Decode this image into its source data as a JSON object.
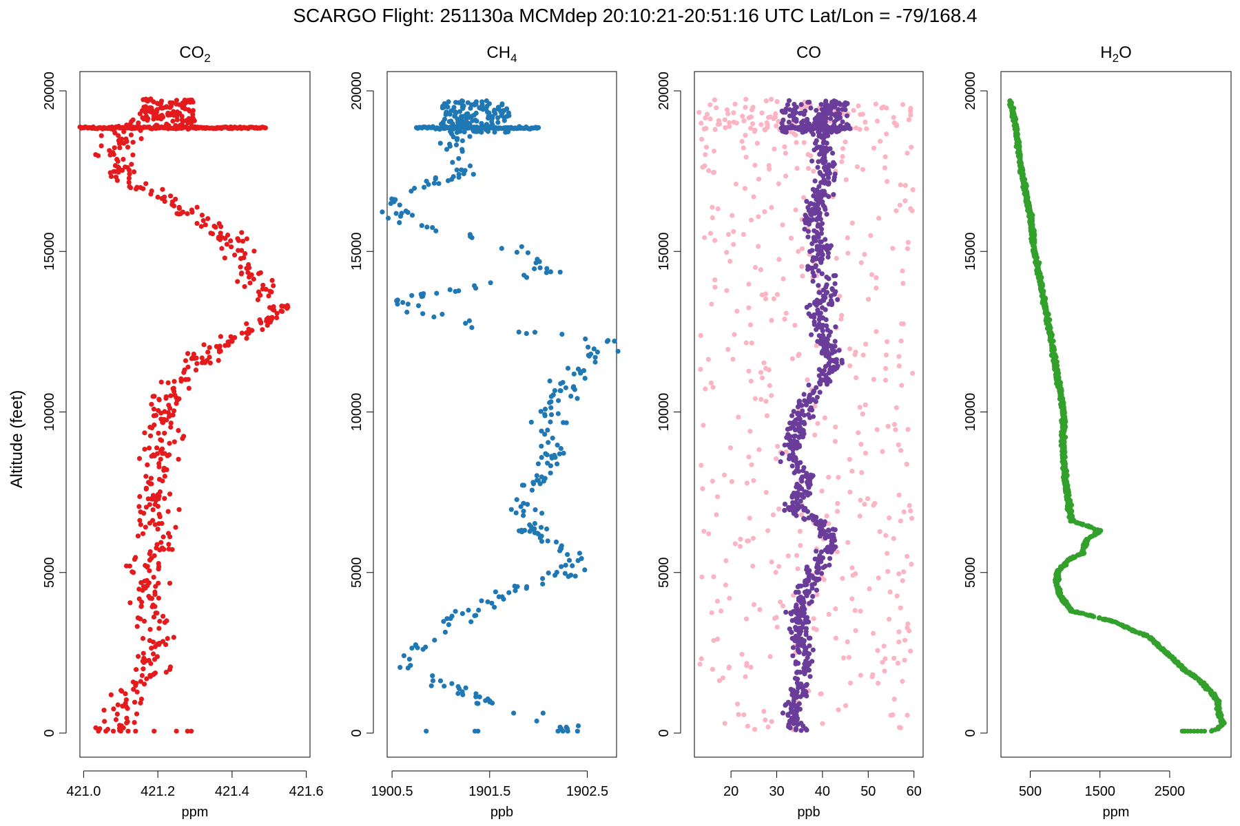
{
  "chart_data": {
    "type": "scatter",
    "title": "SCARGO Flight: 251130a  MCMdep  20:10:21-20:51:16 UTC  Lat/Lon = -79/168.4",
    "ylabel": "Altitude (feet)",
    "ylim": [
      -750,
      20600
    ],
    "yticks": [
      0,
      5000,
      10000,
      15000,
      20000
    ],
    "panels": [
      {
        "id": "co2",
        "title_main": "CO",
        "title_sub": "2",
        "xlabel": "ppm",
        "xlim": [
          420.99,
          421.61
        ],
        "xticks": [
          421.0,
          421.2,
          421.4,
          421.6
        ],
        "xtick_labels": [
          "421.0",
          "421.2",
          "421.4",
          "421.6"
        ],
        "color": "#e41a1c",
        "profile": [
          [
            0,
            421.08
          ],
          [
            1000,
            421.12
          ],
          [
            2000,
            421.18
          ],
          [
            3000,
            421.19
          ],
          [
            4000,
            421.17
          ],
          [
            5000,
            421.17
          ],
          [
            6000,
            421.19
          ],
          [
            7000,
            421.19
          ],
          [
            8000,
            421.19
          ],
          [
            9000,
            421.21
          ],
          [
            10000,
            421.21
          ],
          [
            11000,
            421.25
          ],
          [
            11800,
            421.33
          ],
          [
            12500,
            421.45
          ],
          [
            13200,
            421.52
          ],
          [
            14000,
            421.46
          ],
          [
            15000,
            421.44
          ],
          [
            15800,
            421.34
          ],
          [
            16500,
            421.26
          ],
          [
            17200,
            421.12
          ],
          [
            18000,
            421.09
          ],
          [
            18800,
            421.12
          ],
          [
            19700,
            421.22
          ]
        ],
        "spread": 0.035,
        "n_points": 520,
        "burst": {
          "y": 18850,
          "min": 420.99,
          "max": 421.49,
          "n": 140
        },
        "top": {
          "ymin": 18900,
          "ymax": 19750,
          "min": 421.16,
          "max": 421.3,
          "n": 90
        },
        "surface": [
          421.04,
          421.06,
          421.08,
          421.1,
          421.12,
          421.14,
          421.19,
          421.25,
          421.28,
          421.29
        ]
      },
      {
        "id": "ch4",
        "title_main": "CH",
        "title_sub": "4",
        "xlabel": "ppb",
        "xlim": [
          1900.45,
          1902.8
        ],
        "xticks": [
          1900.5,
          1901.5,
          1902.5
        ],
        "xtick_labels": [
          "1900.5",
          "1901.5",
          "1902.5"
        ],
        "color": "#1f78b4",
        "profile": [
          [
            0,
            1902.4
          ],
          [
            300,
            1902.2
          ],
          [
            1000,
            1901.4
          ],
          [
            1600,
            1901.0
          ],
          [
            2200,
            1900.6
          ],
          [
            3000,
            1900.9
          ],
          [
            3800,
            1901.3
          ],
          [
            4400,
            1901.7
          ],
          [
            4800,
            1902.2
          ],
          [
            5500,
            1902.4
          ],
          [
            6200,
            1902.0
          ],
          [
            7000,
            1901.8
          ],
          [
            8000,
            1902.0
          ],
          [
            9000,
            1902.2
          ],
          [
            10000,
            1902.1
          ],
          [
            11000,
            1902.3
          ],
          [
            12200,
            1902.75
          ],
          [
            12600,
            1901.5
          ],
          [
            13200,
            1900.7
          ],
          [
            13500,
            1900.6
          ],
          [
            14000,
            1901.5
          ],
          [
            14400,
            1902.2
          ],
          [
            15000,
            1901.8
          ],
          [
            15500,
            1901.4
          ],
          [
            15900,
            1900.6
          ],
          [
            16400,
            1900.5
          ],
          [
            17000,
            1900.8
          ],
          [
            17500,
            1901.3
          ],
          [
            18200,
            1901.1
          ],
          [
            18800,
            1901.2
          ],
          [
            19700,
            1901.3
          ]
        ],
        "spread": 0.12,
        "n_points": 330,
        "burst": {
          "y": 18850,
          "min": 1900.75,
          "max": 1902.0,
          "n": 90
        },
        "top": {
          "ymin": 18700,
          "ymax": 19700,
          "min": 1901.0,
          "max": 1901.7,
          "n": 120
        },
        "surface": [
          1900.85,
          1901.35,
          1901.38,
          1902.2,
          1902.25,
          1902.3,
          1902.4
        ]
      },
      {
        "id": "co",
        "title_main": "CO",
        "title_sub": "",
        "xlabel": "ppb",
        "xlim": [
          12,
          62
        ],
        "xticks": [
          20,
          30,
          40,
          50,
          60
        ],
        "xtick_labels": [
          "20",
          "30",
          "40",
          "50",
          "60"
        ],
        "color": "#6a3d9a",
        "noise_color": "#fbb4c4",
        "noise_range": [
          13,
          60
        ],
        "noise_n": 430,
        "profile": [
          [
            0,
            36
          ],
          [
            500,
            33
          ],
          [
            1000,
            34
          ],
          [
            2000,
            36
          ],
          [
            3000,
            35
          ],
          [
            4000,
            35
          ],
          [
            4500,
            37
          ],
          [
            5000,
            38
          ],
          [
            6000,
            42
          ],
          [
            6500,
            40
          ],
          [
            7000,
            34
          ],
          [
            8000,
            37
          ],
          [
            8500,
            33
          ],
          [
            9500,
            34
          ],
          [
            10000,
            35
          ],
          [
            10500,
            38
          ],
          [
            11000,
            40
          ],
          [
            11500,
            43
          ],
          [
            12000,
            41
          ],
          [
            13000,
            39
          ],
          [
            14000,
            41
          ],
          [
            14500,
            38
          ],
          [
            15000,
            40
          ],
          [
            15700,
            38
          ],
          [
            16500,
            39
          ],
          [
            17500,
            41
          ],
          [
            18200,
            40
          ],
          [
            18900,
            40
          ],
          [
            19700,
            42
          ]
        ],
        "spread": 1.6,
        "n_points": 900,
        "burst": {
          "y": 18850,
          "min": 31,
          "max": 46,
          "n": 90
        },
        "top": {
          "ymin": 18700,
          "ymax": 19700,
          "min": 31,
          "max": 46,
          "n": 120
        },
        "surface": []
      },
      {
        "id": "h2o",
        "title_main": "H",
        "title_sub": "2",
        "title_tail": "O",
        "xlabel": "ppm",
        "xlim": [
          80,
          3380
        ],
        "xticks": [
          500,
          1500,
          2500
        ],
        "xtick_labels": [
          "500",
          "1500",
          "2500"
        ],
        "color": "#33a02c",
        "profile": [
          [
            0,
            2820
          ],
          [
            100,
            3180
          ],
          [
            300,
            3270
          ],
          [
            600,
            3200
          ],
          [
            1000,
            3190
          ],
          [
            1600,
            2960
          ],
          [
            2000,
            2700
          ],
          [
            2500,
            2450
          ],
          [
            3000,
            2200
          ],
          [
            3500,
            1650
          ],
          [
            3800,
            1100
          ],
          [
            4200,
            950
          ],
          [
            4600,
            880
          ],
          [
            5000,
            890
          ],
          [
            5400,
            1050
          ],
          [
            5600,
            1250
          ],
          [
            6000,
            1300
          ],
          [
            6300,
            1500
          ],
          [
            6500,
            1250
          ],
          [
            6600,
            1100
          ],
          [
            7000,
            1060
          ],
          [
            8000,
            1000
          ],
          [
            9000,
            970
          ],
          [
            10000,
            980
          ],
          [
            11000,
            900
          ],
          [
            12000,
            820
          ],
          [
            13000,
            740
          ],
          [
            14000,
            650
          ],
          [
            15000,
            560
          ],
          [
            16000,
            510
          ],
          [
            17000,
            420
          ],
          [
            18000,
            340
          ],
          [
            18800,
            300
          ],
          [
            19700,
            210
          ]
        ],
        "spread": 18,
        "n_points": 1800,
        "surface": [
          2680,
          2700,
          2720,
          2760,
          2800,
          2850,
          2900,
          2950,
          3000,
          3100
        ]
      }
    ]
  }
}
